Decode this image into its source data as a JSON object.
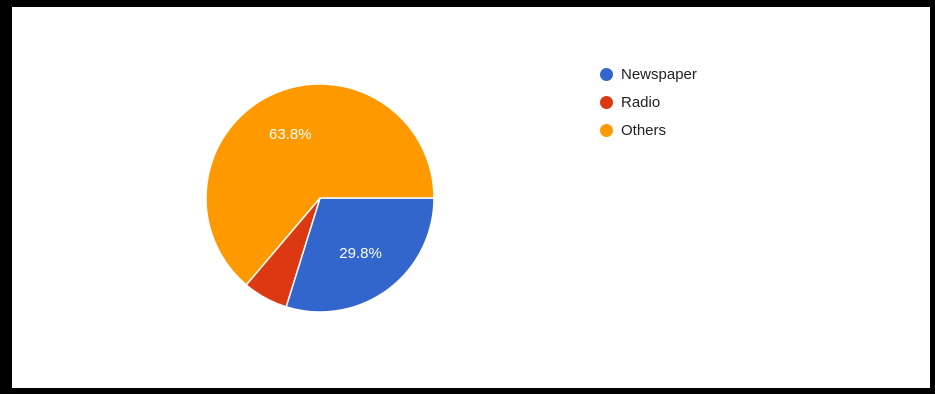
{
  "chart_data": {
    "type": "pie",
    "title": "",
    "slices": [
      {
        "label": "Newspaper",
        "value": 29.8,
        "color": "#3366cc",
        "display_label": "29.8%"
      },
      {
        "label": "Radio",
        "value": 6.4,
        "color": "#dc3912",
        "display_label": ""
      },
      {
        "label": "Others",
        "value": 63.8,
        "color": "#ff9900",
        "display_label": "63.8%"
      }
    ],
    "start_angle_deg": 90,
    "direction": "clockwise",
    "legend_position": "right"
  }
}
